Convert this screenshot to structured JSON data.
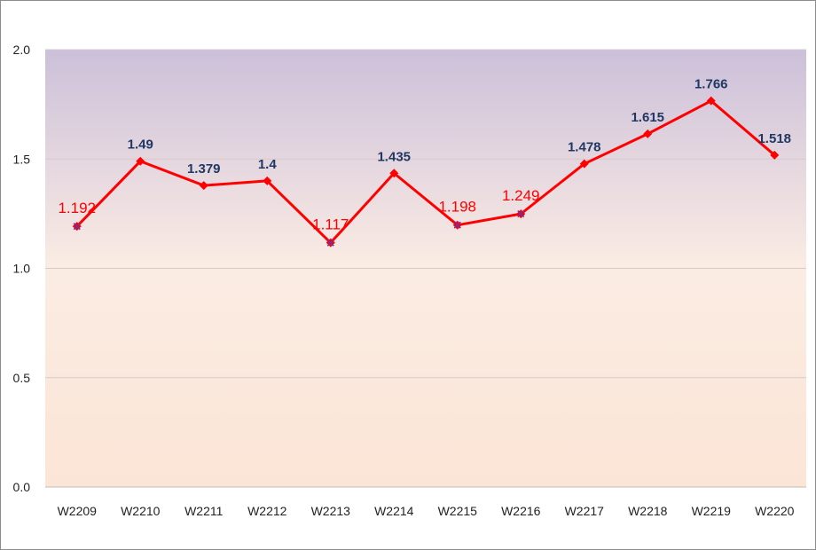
{
  "chart_data": {
    "type": "line",
    "categories": [
      "W2209",
      "W2210",
      "W2211",
      "W2212",
      "W2213",
      "W2214",
      "W2215",
      "W2216",
      "W2217",
      "W2218",
      "W2219",
      "W2220"
    ],
    "series": [
      {
        "values": [
          1.192,
          1.49,
          1.379,
          1.4,
          1.117,
          1.435,
          1.198,
          1.249,
          1.478,
          1.615,
          1.766,
          1.518
        ],
        "color": "#ff0000",
        "data_labels": [
          "1.192",
          "1.49",
          "1.379",
          "1.4",
          "1.117",
          "1.435",
          "1.198",
          "1.249",
          "1.478",
          "1.615",
          "1.766",
          "1.518"
        ],
        "label_style": [
          "low",
          "high",
          "high",
          "high",
          "low",
          "high",
          "low",
          "low",
          "high",
          "high",
          "high",
          "high"
        ]
      }
    ],
    "ylim": [
      0,
      2.0
    ],
    "yticks": [
      "0.0",
      "0.5",
      "1.0",
      "1.5",
      "2.0"
    ],
    "title": "",
    "xlabel": "",
    "ylabel": "",
    "grid": true,
    "legend": "none",
    "colors": {
      "line": "#ff0000",
      "marker": "#ff0000",
      "marker_cross": "#7030a0",
      "label_high": "#1f3864",
      "label_low": "#ff0000",
      "gridline": "#d9c9c9",
      "bg_top": "#ccc0da",
      "bg_bottom": "#fbe5d6"
    }
  }
}
